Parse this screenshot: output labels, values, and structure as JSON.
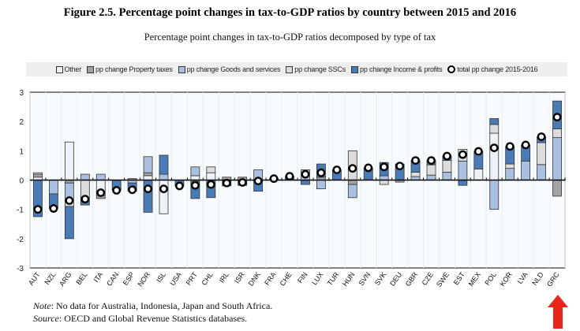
{
  "title": "Figure 2.5. Percentage point changes in tax-to-GDP ratios by country between 2015 and 2016",
  "subtitle": "Percentage point changes in tax-to-GDP ratios decomposed by type of tax",
  "legend": [
    {
      "label": "Other",
      "color": "#eef1f7"
    },
    {
      "label": "pp change Property taxes",
      "color": "#a3a3a3"
    },
    {
      "label": "pp change Goods and services",
      "color": "#aac0e0"
    },
    {
      "label": "pp change SSCs",
      "color": "#dcdcdc"
    },
    {
      "label": "pp change Income & profits",
      "color": "#4a7bb7"
    },
    {
      "label": "total pp change 2015-2016",
      "color": "#ffffff"
    }
  ],
  "note": {
    "label": "Note",
    "text": ": No data for Australia, Indonesia, Japan and South Africa."
  },
  "source": {
    "label": "Source",
    "text": ": OECD and Global Revenue Statistics databases."
  },
  "annotation": {
    "type": "red-arrow",
    "points_to": "GRC",
    "color": "#e8261c"
  },
  "chart_data": {
    "type": "bar",
    "stacked": true,
    "title": "Percentage point changes in tax-to-GDP ratios decomposed by type of tax",
    "ylim": [
      -3,
      3
    ],
    "yticks": [
      -3,
      -2,
      -1,
      0,
      1,
      2,
      3
    ],
    "grid": true,
    "legend_position": "top",
    "categories": [
      "AUT",
      "NZL",
      "ARG",
      "BEL",
      "ITA",
      "CAN",
      "ESP",
      "NOR",
      "ISL",
      "USA",
      "PRT",
      "CHL",
      "IRL",
      "ISR",
      "DNK",
      "FRA",
      "CHE",
      "FIN",
      "LUX",
      "TUR",
      "HUN",
      "SVN",
      "SVK",
      "DEU",
      "GBR",
      "CZE",
      "SWE",
      "EST",
      "MEX",
      "POL",
      "KOR",
      "LVA",
      "NLD",
      "GRC"
    ],
    "series": [
      {
        "name": "Other",
        "values": [
          0.1,
          0,
          1.3,
          0,
          -0.53,
          0,
          0,
          0.15,
          -1.15,
          0,
          0.15,
          0.25,
          0,
          0,
          0,
          0,
          0,
          0,
          0,
          0,
          0,
          0,
          0,
          0,
          0,
          0,
          0,
          0,
          0.38,
          1.6,
          0,
          0,
          0,
          0
        ]
      },
      {
        "name": "pp change Property taxes",
        "values": [
          0.1,
          0,
          -0.1,
          0,
          -0.1,
          0,
          0.05,
          0.1,
          0,
          0,
          -0.05,
          0,
          0.1,
          0.1,
          -0.05,
          0,
          0,
          0,
          0.1,
          0,
          -0.15,
          0,
          0,
          -0.07,
          0,
          0,
          0,
          0,
          0,
          0,
          0,
          0,
          0,
          -0.55
        ]
      },
      {
        "name": "pp change Goods and services",
        "values": [
          0,
          -0.47,
          -0.6,
          0.2,
          0.2,
          0,
          -0.1,
          0.55,
          0.2,
          0,
          0.3,
          0,
          0,
          0,
          0.35,
          0,
          0,
          0.35,
          -0.3,
          0,
          -0.45,
          0,
          0.15,
          0,
          0.12,
          0.17,
          0.27,
          0.65,
          0,
          -1.0,
          0.4,
          0.65,
          0.53,
          1.45
        ]
      },
      {
        "name": "pp change SSCs",
        "values": [
          0.05,
          0,
          -0.2,
          -0.6,
          0,
          0,
          0,
          0,
          0,
          0,
          0,
          0.2,
          0,
          0,
          0,
          0,
          0,
          0,
          0,
          0,
          1.0,
          0,
          -0.15,
          0,
          0.15,
          0.35,
          0.4,
          0.4,
          0,
          0.3,
          0.15,
          0,
          0.75,
          0.3
        ]
      },
      {
        "name": "pp change Income & profits",
        "values": [
          -1.25,
          -0.5,
          -1.1,
          -0.25,
          0,
          -0.35,
          -0.28,
          -1.1,
          0.65,
          -0.2,
          -0.58,
          -0.6,
          -0.2,
          -0.18,
          -0.33,
          0.05,
          0.13,
          -0.15,
          0.45,
          0.35,
          0,
          0.42,
          0.45,
          0.55,
          0.4,
          0.15,
          0.15,
          -0.18,
          0.6,
          0.2,
          0.6,
          0.55,
          0.2,
          0.95
        ]
      }
    ],
    "total": {
      "name": "total pp change 2015-2016",
      "values": [
        -1.0,
        -0.97,
        -0.7,
        -0.65,
        -0.43,
        -0.35,
        -0.33,
        -0.3,
        -0.3,
        -0.2,
        -0.18,
        -0.15,
        -0.1,
        -0.08,
        -0.03,
        0.05,
        0.13,
        0.2,
        0.25,
        0.35,
        0.4,
        0.42,
        0.45,
        0.48,
        0.67,
        0.67,
        0.82,
        0.87,
        0.98,
        1.1,
        1.15,
        1.2,
        1.48,
        2.15
      ]
    }
  }
}
